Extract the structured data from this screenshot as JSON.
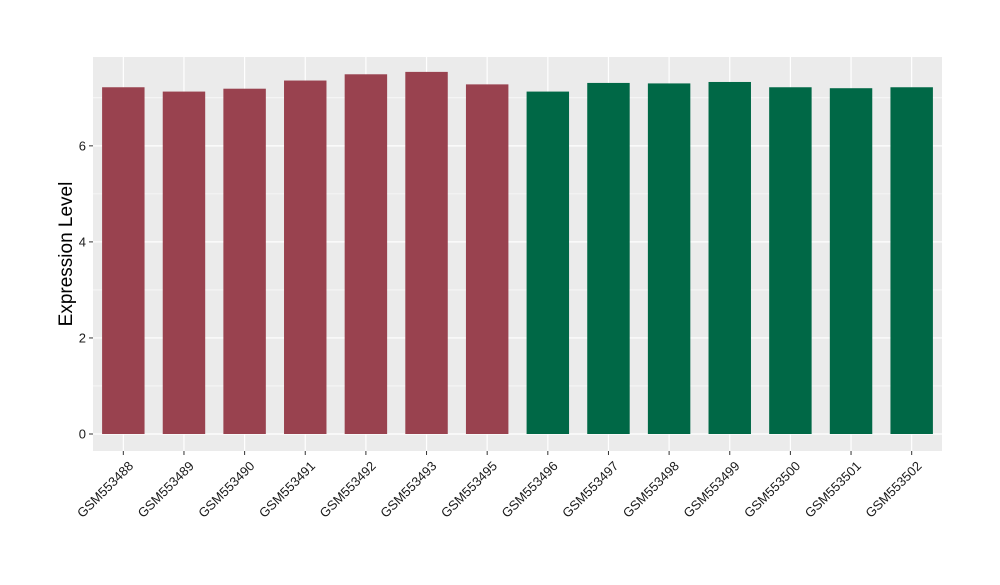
{
  "chart_data": {
    "type": "bar",
    "title": "",
    "xlabel": "",
    "ylabel": "Expression Level",
    "ylim": [
      0,
      7.85
    ],
    "yticks": [
      0,
      2,
      4,
      6
    ],
    "grid": true,
    "categories": [
      "GSM553488",
      "GSM553489",
      "GSM553490",
      "GSM553491",
      "GSM553492",
      "GSM553493",
      "GSM553495",
      "GSM553496",
      "GSM553497",
      "GSM553498",
      "GSM553499",
      "GSM553500",
      "GSM553501",
      "GSM553502"
    ],
    "values": [
      7.22,
      7.13,
      7.19,
      7.36,
      7.49,
      7.54,
      7.28,
      7.13,
      7.31,
      7.3,
      7.33,
      7.22,
      7.2,
      7.22
    ],
    "groups": [
      0,
      0,
      0,
      0,
      0,
      0,
      0,
      1,
      1,
      1,
      1,
      1,
      1,
      1
    ],
    "group_colors": [
      "#99424f",
      "#006846"
    ],
    "panel_background": "#ebebeb",
    "grid_color": "#ffffff"
  }
}
